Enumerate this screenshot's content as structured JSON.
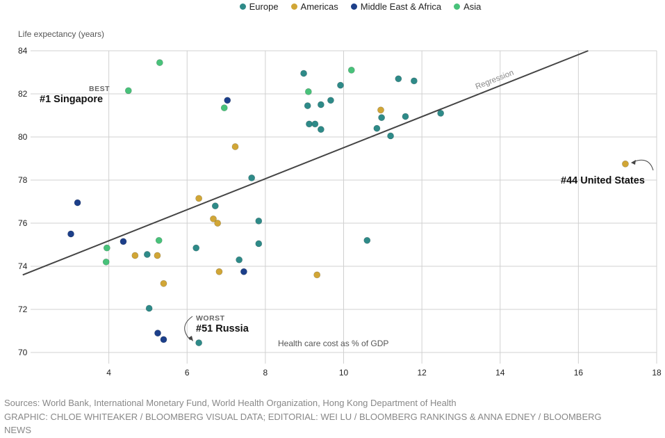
{
  "legend": [
    {
      "name": "Europe",
      "color": "#2e8a88"
    },
    {
      "name": "Americas",
      "color": "#d1a636"
    },
    {
      "name": "Middle East & Africa",
      "color": "#1c3f8a"
    },
    {
      "name": "Asia",
      "color": "#48c27a"
    }
  ],
  "chart_data": {
    "type": "scatter",
    "ylabel": "Life expectancy (years)",
    "xlabel": "Health care cost as % of GDP",
    "xlim": [
      2,
      18
    ],
    "ylim": [
      70,
      84
    ],
    "xticks": [
      4,
      6,
      8,
      10,
      12,
      14,
      16,
      18
    ],
    "yticks": [
      70,
      72,
      74,
      76,
      78,
      80,
      82,
      84
    ],
    "grid": true,
    "regression": {
      "label": "Regression",
      "x": [
        1.8,
        16.25
      ],
      "y": [
        73.6,
        84.0
      ]
    },
    "series": [
      {
        "name": "Europe",
        "color": "#2e8a88",
        "points": [
          [
            8.98,
            82.95
          ],
          [
            9.08,
            81.45
          ],
          [
            9.12,
            80.6
          ],
          [
            9.27,
            80.6
          ],
          [
            9.42,
            80.35
          ],
          [
            9.42,
            81.5
          ],
          [
            9.67,
            81.7
          ],
          [
            9.92,
            82.4
          ],
          [
            10.85,
            80.4
          ],
          [
            10.97,
            80.9
          ],
          [
            11.2,
            80.05
          ],
          [
            11.4,
            82.7
          ],
          [
            11.58,
            80.95
          ],
          [
            11.8,
            82.6
          ],
          [
            12.48,
            81.1
          ],
          [
            7.65,
            78.1
          ],
          [
            6.72,
            76.8
          ],
          [
            7.83,
            76.1
          ],
          [
            6.23,
            74.85
          ],
          [
            7.83,
            75.05
          ],
          [
            7.33,
            74.3
          ],
          [
            4.98,
            74.55
          ],
          [
            10.6,
            75.2
          ],
          [
            5.03,
            72.05
          ],
          [
            6.3,
            70.45
          ]
        ]
      },
      {
        "name": "Americas",
        "color": "#d1a636",
        "points": [
          [
            10.95,
            81.25
          ],
          [
            7.23,
            79.55
          ],
          [
            6.3,
            77.15
          ],
          [
            6.67,
            76.2
          ],
          [
            6.78,
            76.0
          ],
          [
            4.67,
            74.5
          ],
          [
            5.24,
            74.5
          ],
          [
            6.82,
            73.75
          ],
          [
            9.32,
            73.6
          ],
          [
            5.4,
            73.2
          ],
          [
            17.2,
            78.75
          ]
        ]
      },
      {
        "name": "Middle East & Africa",
        "color": "#1c3f8a",
        "points": [
          [
            7.03,
            81.7
          ],
          [
            3.2,
            76.95
          ],
          [
            3.03,
            75.5
          ],
          [
            4.37,
            75.15
          ],
          [
            7.45,
            73.75
          ],
          [
            5.25,
            70.9
          ],
          [
            5.4,
            70.6
          ]
        ]
      },
      {
        "name": "Asia",
        "color": "#48c27a",
        "points": [
          [
            5.3,
            83.45
          ],
          [
            4.5,
            82.15
          ],
          [
            10.2,
            83.1
          ],
          [
            9.1,
            82.1
          ],
          [
            6.95,
            81.35
          ],
          [
            3.95,
            74.85
          ],
          [
            5.28,
            75.2
          ],
          [
            3.93,
            74.2
          ]
        ]
      }
    ],
    "annotations": {
      "best_label": "BEST",
      "best_country": "#1 Singapore",
      "worst_label": "WORST",
      "worst_country": "#51 Russia",
      "us_country": "#44 United States"
    }
  },
  "footer": {
    "sources": "Sources: World Bank, International Monetary Fund, World Health Organization, Hong Kong Department of Health",
    "credits": "GRAPHIC: CHLOE WHITEAKER / BLOOMBERG VISUAL DATA; EDITORIAL: WEI LU / BLOOMBERG RANKINGS & ANNA EDNEY / BLOOMBERG NEWS"
  }
}
